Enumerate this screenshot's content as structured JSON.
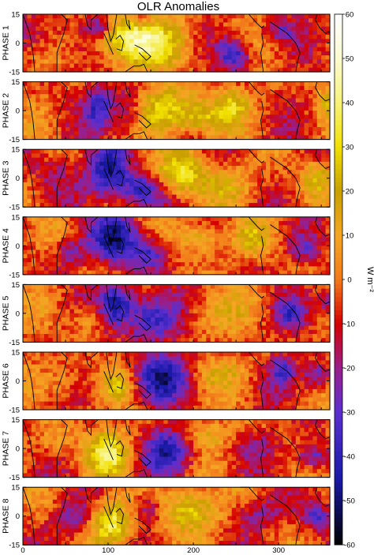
{
  "chart_data": {
    "type": "heatmap",
    "title": "OLR Anomalies",
    "colorbar_label": "W m⁻²",
    "colorbar_ticks": [
      60,
      50,
      40,
      30,
      20,
      10,
      0,
      -10,
      -20,
      -30,
      -40,
      -50,
      -60
    ],
    "colorbar_range": [
      -60,
      60
    ],
    "xlim": [
      0,
      360
    ],
    "x_ticks": [
      0,
      100,
      200,
      300
    ],
    "ylim": [
      -15,
      15
    ],
    "y_ticks": [
      15,
      0,
      -15
    ],
    "colormap": [
      {
        "v": -60,
        "c": "#000000"
      },
      {
        "v": -45,
        "c": "#1a1aa8"
      },
      {
        "v": -30,
        "c": "#5a2fd0"
      },
      {
        "v": -20,
        "c": "#9a1f8a"
      },
      {
        "v": -10,
        "c": "#d40000"
      },
      {
        "v": 0,
        "c": "#f27a1a"
      },
      {
        "v": 10,
        "c": "#f5a623"
      },
      {
        "v": 20,
        "c": "#c8a000"
      },
      {
        "v": 30,
        "c": "#f2e000"
      },
      {
        "v": 40,
        "c": "#f7f27a"
      },
      {
        "v": 50,
        "c": "#fbfbd0"
      },
      {
        "v": 60,
        "c": "#ffffff"
      }
    ],
    "panels": [
      {
        "label": "PHASE 1",
        "features": [
          {
            "lon": 115,
            "lat": 3,
            "slon": 22,
            "slat": 9,
            "a": 32
          },
          {
            "lon": 160,
            "lat": 0,
            "slon": 30,
            "slat": 10,
            "a": 30
          },
          {
            "lon": 248,
            "lat": -6,
            "slon": 14,
            "slat": 6,
            "a": -38
          },
          {
            "lon": 90,
            "lat": 9,
            "slon": 10,
            "slat": 4,
            "a": -25
          },
          {
            "lon": 300,
            "lat": 7,
            "slon": 14,
            "slat": 4,
            "a": -22
          },
          {
            "lon": 20,
            "lat": 5,
            "slon": 25,
            "slat": 8,
            "a": -15
          },
          {
            "lon": 140,
            "lat": 12,
            "slon": 10,
            "slat": 3,
            "a": -20
          }
        ]
      },
      {
        "label": "PHASE 2",
        "features": [
          {
            "lon": 90,
            "lat": 2,
            "slon": 12,
            "slat": 8,
            "a": -32
          },
          {
            "lon": 125,
            "lat": -2,
            "slon": 12,
            "slat": 9,
            "a": -30
          },
          {
            "lon": 170,
            "lat": 0,
            "slon": 30,
            "slat": 9,
            "a": 35
          },
          {
            "lon": 245,
            "lat": 3,
            "slon": 15,
            "slat": 6,
            "a": 25
          },
          {
            "lon": 360,
            "lat": 5,
            "slon": 10,
            "slat": 6,
            "a": 22
          },
          {
            "lon": 210,
            "lat": -4,
            "slon": 18,
            "slat": 5,
            "a": 20
          }
        ]
      },
      {
        "label": "PHASE 3",
        "features": [
          {
            "lon": 100,
            "lat": 3,
            "slon": 18,
            "slat": 10,
            "a": -40
          },
          {
            "lon": 140,
            "lat": -6,
            "slon": 18,
            "slat": 6,
            "a": -35
          },
          {
            "lon": 185,
            "lat": 2,
            "slon": 22,
            "slat": 8,
            "a": 35
          },
          {
            "lon": 240,
            "lat": -4,
            "slon": 20,
            "slat": 7,
            "a": 18
          },
          {
            "lon": 345,
            "lat": 0,
            "slon": 14,
            "slat": 6,
            "a": 25
          },
          {
            "lon": 40,
            "lat": 3,
            "slon": 20,
            "slat": 8,
            "a": -12
          }
        ]
      },
      {
        "label": "PHASE 4",
        "features": [
          {
            "lon": 110,
            "lat": 3,
            "slon": 22,
            "slat": 9,
            "a": -42
          },
          {
            "lon": 150,
            "lat": -4,
            "slon": 14,
            "slat": 6,
            "a": -25
          },
          {
            "lon": 205,
            "lat": 5,
            "slon": 20,
            "slat": 6,
            "a": 25
          },
          {
            "lon": 270,
            "lat": 3,
            "slon": 15,
            "slat": 6,
            "a": 22
          },
          {
            "lon": 330,
            "lat": -2,
            "slon": 12,
            "slat": 5,
            "a": -20
          },
          {
            "lon": 55,
            "lat": -3,
            "slon": 10,
            "slat": 5,
            "a": -18
          }
        ]
      },
      {
        "label": "PHASE 5",
        "features": [
          {
            "lon": 110,
            "lat": 5,
            "slon": 14,
            "slat": 8,
            "a": -40
          },
          {
            "lon": 150,
            "lat": -2,
            "slon": 22,
            "slat": 9,
            "a": -38
          },
          {
            "lon": 75,
            "lat": -3,
            "slon": 14,
            "slat": 6,
            "a": 18
          },
          {
            "lon": 220,
            "lat": 0,
            "slon": 25,
            "slat": 8,
            "a": 15
          },
          {
            "lon": 315,
            "lat": 0,
            "slon": 12,
            "slat": 5,
            "a": -25
          },
          {
            "lon": 360,
            "lat": 6,
            "slon": 10,
            "slat": 5,
            "a": -25
          }
        ]
      },
      {
        "label": "PHASE 6",
        "features": [
          {
            "lon": 160,
            "lat": 2,
            "slon": 22,
            "slat": 9,
            "a": -40
          },
          {
            "lon": 110,
            "lat": -2,
            "slon": 12,
            "slat": 6,
            "a": 22
          },
          {
            "lon": 45,
            "lat": 0,
            "slon": 18,
            "slat": 7,
            "a": 15
          },
          {
            "lon": 230,
            "lat": 4,
            "slon": 22,
            "slat": 5,
            "a": 15
          },
          {
            "lon": 305,
            "lat": 6,
            "slon": 10,
            "slat": 5,
            "a": -28
          },
          {
            "lon": 345,
            "lat": 3,
            "slon": 12,
            "slat": 5,
            "a": -30
          }
        ]
      },
      {
        "label": "PHASE 7",
        "features": [
          {
            "lon": 100,
            "lat": -2,
            "slon": 18,
            "slat": 9,
            "a": 38
          },
          {
            "lon": 170,
            "lat": 0,
            "slon": 20,
            "slat": 9,
            "a": -38
          },
          {
            "lon": 215,
            "lat": 8,
            "slon": 25,
            "slat": 5,
            "a": 20
          },
          {
            "lon": 270,
            "lat": 3,
            "slon": 18,
            "slat": 6,
            "a": -15
          },
          {
            "lon": 340,
            "lat": -4,
            "slon": 14,
            "slat": 5,
            "a": -28
          },
          {
            "lon": 40,
            "lat": 3,
            "slon": 15,
            "slat": 6,
            "a": 12
          }
        ]
      },
      {
        "label": "PHASE 8",
        "features": [
          {
            "lon": 105,
            "lat": -4,
            "slon": 18,
            "slat": 8,
            "a": 40
          },
          {
            "lon": 145,
            "lat": 4,
            "slon": 14,
            "slat": 6,
            "a": -22
          },
          {
            "lon": 195,
            "lat": 4,
            "slon": 24,
            "slat": 8,
            "a": 35
          },
          {
            "lon": 60,
            "lat": -2,
            "slon": 16,
            "slat": 6,
            "a": -22
          },
          {
            "lon": 275,
            "lat": 2,
            "slon": 22,
            "slat": 6,
            "a": -18
          },
          {
            "lon": 345,
            "lat": 0,
            "slon": 12,
            "slat": 5,
            "a": -28
          }
        ]
      }
    ]
  }
}
